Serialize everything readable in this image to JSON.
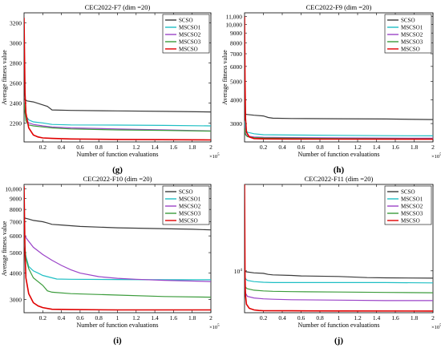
{
  "figure": {
    "series_names": [
      "SCSO",
      "MSCSO1",
      "MSCSO2",
      "MSCSO3",
      "MSCSO"
    ],
    "series_colors": [
      "#3a3a3a",
      "#1fbfc4",
      "#9b44c8",
      "#3c9c3c",
      "#e00000"
    ],
    "axis_x_label": "Number of function evaluations",
    "axis_y_label": "Average fitness value",
    "x_exponent_base": "×10",
    "x_exponent_power": "5"
  },
  "chart_data": [
    {
      "type": "line",
      "panel_label": "(g)",
      "title": "CEC2022-F7 (dim =20)",
      "xlabel": "Number of function evaluations",
      "ylabel": "Average fitness value",
      "xlim": [
        0,
        2
      ],
      "ylim": [
        2010,
        3300
      ],
      "xticks": [
        0.2,
        0.4,
        0.6,
        0.8,
        1,
        1.2,
        1.4,
        1.6,
        1.8,
        2
      ],
      "yticks": [
        2200,
        2400,
        2600,
        2800,
        3000,
        3200
      ],
      "x_multiplier_power": 5,
      "legend": "top-right",
      "series": [
        {
          "name": "SCSO",
          "x": [
            0,
            0.03,
            0.1,
            0.2,
            0.25,
            0.3,
            0.5,
            1,
            1.5,
            2
          ],
          "y": [
            2440,
            2420,
            2410,
            2380,
            2365,
            2330,
            2325,
            2320,
            2315,
            2310
          ]
        },
        {
          "name": "MSCSO1",
          "x": [
            0,
            0.02,
            0.05,
            0.1,
            0.2,
            0.3,
            0.5,
            1,
            1.5,
            2
          ],
          "y": [
            2400,
            2270,
            2230,
            2210,
            2200,
            2185,
            2180,
            2178,
            2175,
            2170
          ]
        },
        {
          "name": "MSCSO2",
          "x": [
            0,
            0.02,
            0.05,
            0.1,
            0.2,
            0.3,
            0.5,
            1,
            1.5,
            2
          ],
          "y": [
            2400,
            2240,
            2200,
            2185,
            2170,
            2160,
            2150,
            2140,
            2130,
            2120
          ]
        },
        {
          "name": "MSCSO3",
          "x": [
            0,
            0.02,
            0.05,
            0.1,
            0.2,
            0.3,
            0.5,
            1,
            1.5,
            2
          ],
          "y": [
            2400,
            2220,
            2180,
            2170,
            2160,
            2150,
            2140,
            2130,
            2125,
            2118
          ]
        },
        {
          "name": "MSCSO",
          "x": [
            0,
            0.01,
            0.02,
            0.05,
            0.1,
            0.15,
            0.2,
            0.3,
            0.5,
            1,
            2
          ],
          "y": [
            3250,
            2500,
            2300,
            2150,
            2080,
            2060,
            2050,
            2045,
            2040,
            2035,
            2030
          ]
        }
      ]
    },
    {
      "type": "line",
      "panel_label": "(h)",
      "title": "CEC2022-F9 (dim =20)",
      "xlabel": "Number of function evaluations",
      "ylabel": "Average fitness value",
      "xlim": [
        0,
        2
      ],
      "ylim": [
        2400,
        11500
      ],
      "y_scale": "log",
      "xticks": [
        0.2,
        0.4,
        0.6,
        0.8,
        1,
        1.2,
        1.4,
        1.6,
        1.8,
        2
      ],
      "yticks": [
        3000,
        4000,
        5000,
        6000,
        7000,
        8000,
        9000,
        10000,
        11000
      ],
      "x_multiplier_power": 5,
      "legend": "top-right",
      "series": [
        {
          "name": "SCSO",
          "x": [
            0,
            0.02,
            0.1,
            0.2,
            0.25,
            0.3,
            0.5,
            1,
            1.5,
            2
          ],
          "y": [
            3400,
            3350,
            3320,
            3290,
            3230,
            3200,
            3190,
            3180,
            3170,
            3150
          ]
        },
        {
          "name": "MSCSO1",
          "x": [
            0,
            0.01,
            0.03,
            0.1,
            0.2,
            0.5,
            1,
            1.5,
            2
          ],
          "y": [
            3100,
            2800,
            2700,
            2650,
            2620,
            2610,
            2600,
            2590,
            2585
          ]
        },
        {
          "name": "MSCSO2",
          "x": [
            0,
            0.01,
            0.03,
            0.1,
            0.2,
            0.5,
            1,
            1.5,
            2
          ],
          "y": [
            2900,
            2650,
            2580,
            2550,
            2540,
            2530,
            2520,
            2515,
            2510
          ]
        },
        {
          "name": "MSCSO3",
          "x": [
            0,
            0.01,
            0.03,
            0.1,
            0.2,
            0.5,
            1,
            1.5,
            2
          ],
          "y": [
            2850,
            2620,
            2560,
            2530,
            2520,
            2510,
            2500,
            2495,
            2490
          ]
        },
        {
          "name": "MSCSO",
          "x": [
            0,
            0.005,
            0.01,
            0.02,
            0.05,
            0.1,
            0.2,
            0.5,
            1,
            2
          ],
          "y": [
            11000,
            5000,
            3200,
            2700,
            2550,
            2500,
            2490,
            2485,
            2482,
            2480
          ]
        }
      ]
    },
    {
      "type": "line",
      "panel_label": "(i)",
      "title": "CEC2022-F10 (dim =20)",
      "xlabel": "Number of function evaluations",
      "ylabel": "Average fitness value",
      "xlim": [
        0,
        2
      ],
      "ylim": [
        2600,
        10500
      ],
      "y_scale": "log",
      "xticks": [
        0.2,
        0.4,
        0.6,
        0.8,
        1,
        1.2,
        1.4,
        1.6,
        1.8,
        2
      ],
      "yticks": [
        3000,
        4000,
        5000,
        6000,
        7000,
        8000,
        9000,
        10000
      ],
      "x_multiplier_power": 5,
      "legend": "top-right",
      "series": [
        {
          "name": "SCSO",
          "x": [
            0,
            0.05,
            0.1,
            0.2,
            0.25,
            0.3,
            0.4,
            0.6,
            1,
            1.4,
            1.8,
            2
          ],
          "y": [
            7300,
            7200,
            7100,
            7000,
            6900,
            6800,
            6750,
            6650,
            6550,
            6500,
            6450,
            6400
          ]
        },
        {
          "name": "MSCSO1",
          "x": [
            0,
            0.02,
            0.05,
            0.1,
            0.15,
            0.2,
            0.3,
            0.35,
            0.5,
            1,
            1.5,
            2
          ],
          "y": [
            5600,
            4800,
            4300,
            4100,
            4000,
            3900,
            3800,
            3750,
            3740,
            3730,
            3720,
            3720
          ]
        },
        {
          "name": "MSCSO2",
          "x": [
            0,
            0.03,
            0.1,
            0.2,
            0.3,
            0.4,
            0.5,
            0.6,
            0.8,
            1,
            1.2,
            1.5,
            2
          ],
          "y": [
            6100,
            5800,
            5300,
            4900,
            4600,
            4350,
            4150,
            4000,
            3850,
            3780,
            3740,
            3700,
            3650
          ]
        },
        {
          "name": "MSCSO3",
          "x": [
            0,
            0.02,
            0.05,
            0.1,
            0.2,
            0.25,
            0.3,
            0.5,
            1,
            1.5,
            2
          ],
          "y": [
            6000,
            4700,
            4200,
            3800,
            3500,
            3300,
            3250,
            3200,
            3150,
            3100,
            3080
          ]
        },
        {
          "name": "MSCSO",
          "x": [
            0,
            0.01,
            0.02,
            0.05,
            0.1,
            0.15,
            0.2,
            0.3,
            0.5,
            1,
            2
          ],
          "y": [
            10300,
            5000,
            3800,
            3200,
            2900,
            2800,
            2750,
            2700,
            2690,
            2680,
            2680
          ]
        }
      ]
    },
    {
      "type": "line",
      "panel_label": "(j)",
      "title": "CEC2022-F11 (dim =20)",
      "xlabel": "Number of function evaluations",
      "ylabel": "",
      "xlim": [
        0,
        2
      ],
      "ylim": [
        4200,
        60000
      ],
      "y_scale": "log",
      "xticks": [
        0.2,
        0.4,
        0.6,
        0.8,
        1,
        1.2,
        1.4,
        1.6,
        1.8,
        2
      ],
      "yticks": [
        10000
      ],
      "ytick_labels": [
        "10^4"
      ],
      "x_multiplier_power": 5,
      "legend": "top-right",
      "series": [
        {
          "name": "SCSO",
          "x": [
            0,
            0.02,
            0.1,
            0.2,
            0.25,
            0.3,
            0.5,
            0.6,
            1,
            1.3,
            1.5,
            2
          ],
          "y": [
            10000,
            9800,
            9600,
            9500,
            9300,
            9200,
            9100,
            9000,
            8900,
            8700,
            8650,
            8600
          ]
        },
        {
          "name": "MSCSO1",
          "x": [
            0,
            0.01,
            0.03,
            0.1,
            0.2,
            0.3,
            0.5,
            1,
            1.5,
            2
          ],
          "y": [
            9200,
            8500,
            8200,
            8000,
            7900,
            7850,
            7850,
            7850,
            7850,
            7800
          ]
        },
        {
          "name": "MSCSO2",
          "x": [
            0,
            0.01,
            0.03,
            0.1,
            0.2,
            0.3,
            0.5,
            1,
            1.5,
            2
          ],
          "y": [
            7500,
            6300,
            5900,
            5700,
            5600,
            5550,
            5500,
            5450,
            5400,
            5400
          ]
        },
        {
          "name": "MSCSO3",
          "x": [
            0,
            0.01,
            0.03,
            0.1,
            0.2,
            0.3,
            0.5,
            1,
            1.5,
            2
          ],
          "y": [
            7800,
            7100,
            6900,
            6700,
            6600,
            6550,
            6500,
            6450,
            6400,
            6350
          ]
        },
        {
          "name": "MSCSO",
          "x": [
            0,
            0.005,
            0.01,
            0.02,
            0.05,
            0.1,
            0.15,
            0.2,
            0.5,
            1,
            2
          ],
          "y": [
            60000,
            9000,
            6000,
            5000,
            4600,
            4450,
            4400,
            4380,
            4370,
            4360,
            4350
          ]
        }
      ]
    }
  ]
}
